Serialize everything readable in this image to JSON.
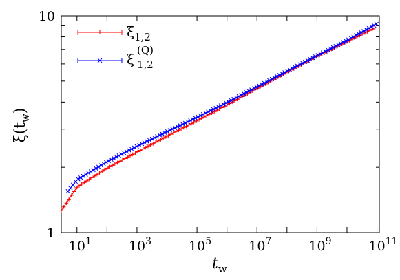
{
  "chart_data": {
    "type": "line",
    "xscale": "log",
    "yscale": "log",
    "xlim": [
      3.0,
      120000000000.0
    ],
    "ylim": [
      1,
      10
    ],
    "xlabel": "t",
    "xlabel_sub": "w",
    "ylabel": "ξ(t",
    "ylabel_sub": "w",
    "ylabel_close": ")",
    "x_tick_labels": [
      {
        "value": 10,
        "base": "10",
        "exp": "1"
      },
      {
        "value": 1000,
        "base": "10",
        "exp": "3"
      },
      {
        "value": 100000,
        "base": "10",
        "exp": "5"
      },
      {
        "value": 10000000,
        "base": "10",
        "exp": "7"
      },
      {
        "value": 1000000000,
        "base": "10",
        "exp": "9"
      },
      {
        "value": 100000000000,
        "base": "10",
        "exp": "11"
      }
    ],
    "y_tick_labels": [
      {
        "value": 1,
        "label": "1"
      },
      {
        "value": 10,
        "label": "10"
      }
    ],
    "legend_position": "top-left",
    "series": [
      {
        "name": "ξ",
        "name_sub": "1,2",
        "name_sup": "",
        "color": "#ff0000",
        "marker": "plus",
        "x": [
          3.0,
          10,
          100,
          1000,
          10000,
          100000,
          1000000,
          10000000,
          100000000,
          1000000000,
          10000000000,
          100000000000
        ],
        "y": [
          1.26,
          1.62,
          1.98,
          2.35,
          2.78,
          3.28,
          3.88,
          4.62,
          5.5,
          6.5,
          7.6,
          8.9
        ]
      },
      {
        "name": "ξ",
        "name_sub": "1,2",
        "name_sup": "(Q)",
        "color": "#0000ff",
        "marker": "x",
        "x": [
          5.0,
          10,
          100,
          1000,
          10000,
          100000,
          1000000,
          10000000,
          100000000,
          1000000000,
          10000000000,
          100000000000
        ],
        "y": [
          1.55,
          1.75,
          2.12,
          2.5,
          2.92,
          3.4,
          3.98,
          4.7,
          5.55,
          6.55,
          7.7,
          9.2
        ]
      }
    ]
  }
}
